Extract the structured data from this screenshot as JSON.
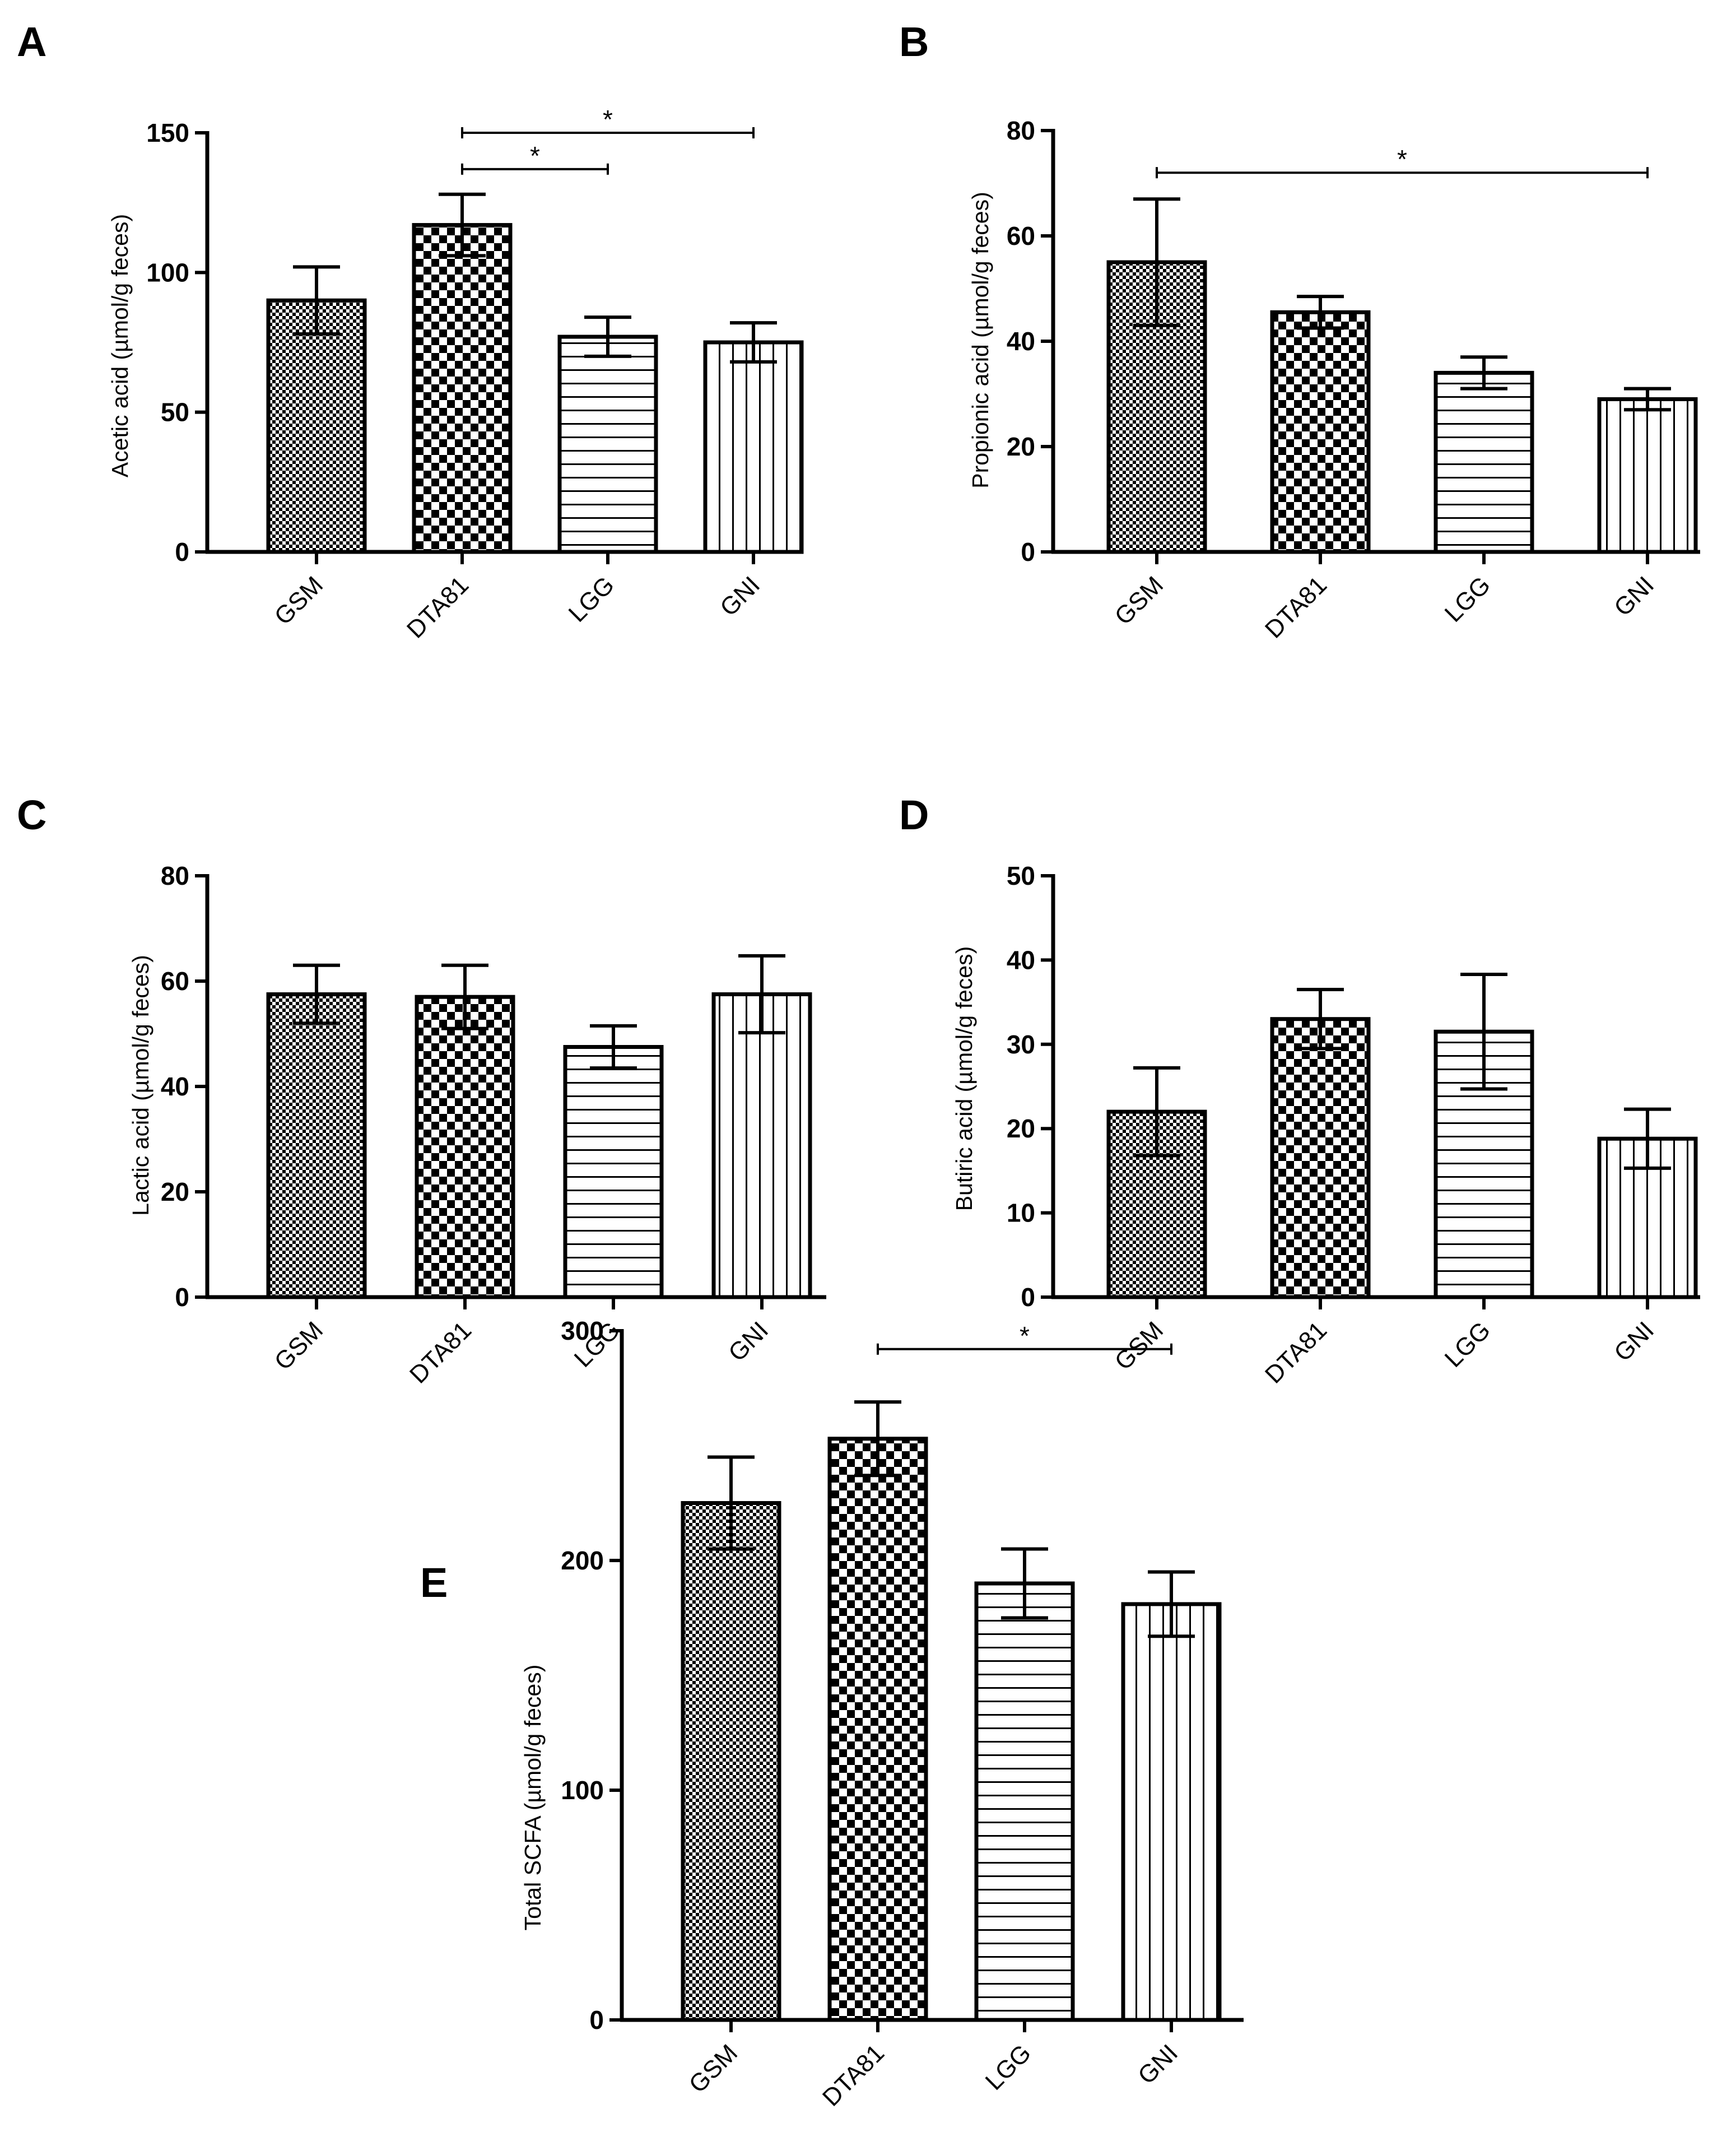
{
  "figure": {
    "patterns": [
      "fine-checker",
      "coarse-checker",
      "horizontal-lines",
      "vertical-lines"
    ]
  },
  "chart_data": [
    {
      "panel": "A",
      "type": "bar",
      "categories": [
        "GSM",
        "DTA81",
        "LGG",
        "GNI"
      ],
      "values": [
        90,
        117,
        77,
        75
      ],
      "errors": [
        12,
        11,
        7,
        7
      ],
      "ylabel": "Acetic acid (µmol/g feces)",
      "ylim": [
        0,
        150
      ],
      "yticks": [
        0,
        50,
        100,
        150
      ],
      "significance": [
        {
          "from": 1,
          "to": 2,
          "label": "*",
          "level": 137
        },
        {
          "from": 1,
          "to": 3,
          "label": "*",
          "level": 150
        }
      ]
    },
    {
      "panel": "B",
      "type": "bar",
      "categories": [
        "GSM",
        "DTA81",
        "LGG",
        "GNI"
      ],
      "values": [
        55,
        45.5,
        34,
        29
      ],
      "errors": [
        12,
        3,
        3,
        2
      ],
      "ylabel": "Propionic acid (µmol/g feces)",
      "ylim": [
        0,
        80
      ],
      "yticks": [
        0,
        20,
        40,
        60,
        80
      ],
      "significance": [
        {
          "from": 0,
          "to": 3,
          "label": "*",
          "level": 72
        }
      ]
    },
    {
      "panel": "C",
      "type": "bar",
      "categories": [
        "GSM",
        "DTA81",
        "LGG",
        "GNI"
      ],
      "values": [
        57.5,
        57,
        47.5,
        57.5
      ],
      "errors": [
        5.5,
        6,
        4,
        7.3
      ],
      "ylabel": "Lactic acid (µmol/g feces)",
      "ylim": [
        0,
        80
      ],
      "yticks": [
        0,
        20,
        40,
        60,
        80
      ],
      "significance": []
    },
    {
      "panel": "D",
      "type": "bar",
      "categories": [
        "GSM",
        "DTA81",
        "LGG",
        "GNI"
      ],
      "values": [
        22,
        33,
        31.5,
        18.8
      ],
      "errors": [
        5.2,
        3.5,
        6.8,
        3.5
      ],
      "ylabel": "Butiric acid (µmol/g feces)",
      "ylim": [
        0,
        50
      ],
      "yticks": [
        0,
        10,
        20,
        30,
        40,
        50
      ],
      "significance": []
    },
    {
      "panel": "E",
      "type": "bar",
      "categories": [
        "GSM",
        "DTA81",
        "LGG",
        "GNI"
      ],
      "values": [
        225,
        253,
        190,
        181
      ],
      "errors": [
        20,
        16,
        15,
        14
      ],
      "ylabel": "Total SCFA (µmol/g feces)",
      "ylim": [
        0,
        300
      ],
      "yticks": [
        0,
        100,
        200,
        300
      ],
      "significance": [
        {
          "from": 1,
          "to": 3,
          "label": "*",
          "level": 292
        }
      ]
    }
  ]
}
